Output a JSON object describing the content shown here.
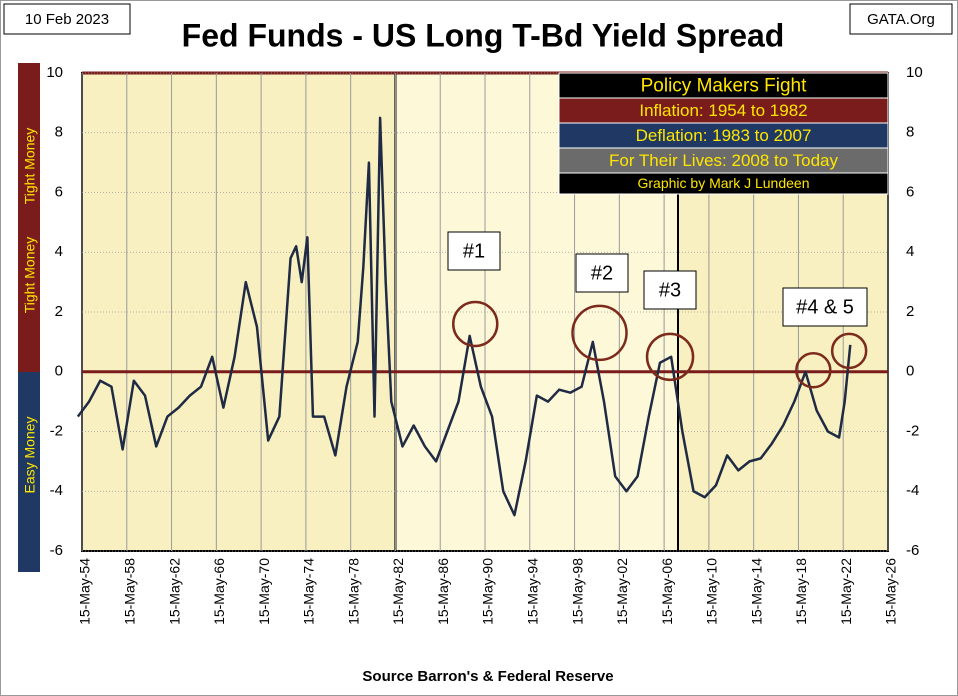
{
  "chart_data": {
    "type": "line",
    "title": "Fed Funds - US Long T-Bd Yield Spread",
    "date_stamp": "10 Feb 2023",
    "site": "GATA.Org",
    "source": "Source Barron's & Federal Reserve",
    "side_labels": {
      "tight": "Tight Money",
      "easy": "Easy Money"
    },
    "legend_box": [
      "Policy Makers Fight",
      "Inflation: 1954 to 1982",
      "Deflation: 1983 to 2007",
      "For Their Lives: 2008 to Today",
      "Graphic by Mark J Lundeen"
    ],
    "annotations": [
      "#1",
      "#2",
      "#3",
      "#4 & 5"
    ],
    "x": [
      1954,
      1955,
      1956,
      1957,
      1958,
      1959,
      1960,
      1961,
      1962,
      1963,
      1964,
      1965,
      1966,
      1967,
      1968,
      1969,
      1970,
      1971,
      1972,
      1973,
      1973.5,
      1974,
      1974.5,
      1975,
      1976,
      1977,
      1978,
      1979,
      1979.5,
      1980,
      1980.5,
      1981,
      1981.5,
      1982,
      1983,
      1984,
      1985,
      1986,
      1987,
      1988,
      1989,
      1990,
      1991,
      1992,
      1993,
      1994,
      1995,
      1996,
      1997,
      1998,
      1999,
      2000,
      2001,
      2002,
      2003,
      2004,
      2005,
      2006,
      2007,
      2008,
      2009,
      2010,
      2011,
      2012,
      2013,
      2014,
      2015,
      2016,
      2017,
      2018,
      2019,
      2020,
      2021,
      2022,
      2022.5,
      2023
    ],
    "series": [
      {
        "name": "Spread",
        "color": "#1f2a44",
        "values": [
          -1.5,
          -1,
          -0.3,
          -0.5,
          -2.6,
          -0.3,
          -0.8,
          -2.5,
          -1.5,
          -1.2,
          -0.8,
          -0.5,
          0.5,
          -1.2,
          0.5,
          3.0,
          1.5,
          -2.3,
          -1.5,
          3.8,
          4.2,
          3.0,
          4.5,
          -1.5,
          -1.5,
          -2.8,
          -0.5,
          1.0,
          3.5,
          7.0,
          -1.5,
          8.5,
          3.0,
          -1.0,
          -2.5,
          -1.8,
          -2.5,
          -3.0,
          -2.0,
          -1.0,
          1.2,
          -0.5,
          -1.5,
          -4.0,
          -4.8,
          -3.0,
          -0.8,
          -1.0,
          -0.6,
          -0.7,
          -0.5,
          1.0,
          -1.0,
          -3.5,
          -4.0,
          -3.5,
          -1.5,
          0.3,
          0.5,
          -2.0,
          -4.0,
          -4.2,
          -3.8,
          -2.8,
          -3.3,
          -3.0,
          -2.9,
          -2.4,
          -1.8,
          -1.0,
          0.0,
          -1.3,
          -2.0,
          -2.2,
          -1.0,
          0.9
        ]
      }
    ],
    "xlim": [
      1954.37,
      2026.37
    ],
    "xticks": [
      {
        "value": 1954.37,
        "label": "15-May-54"
      },
      {
        "value": 1958.37,
        "label": "15-May-58"
      },
      {
        "value": 1962.37,
        "label": "15-May-62"
      },
      {
        "value": 1966.37,
        "label": "15-May-66"
      },
      {
        "value": 1970.37,
        "label": "15-May-70"
      },
      {
        "value": 1974.37,
        "label": "15-May-74"
      },
      {
        "value": 1978.37,
        "label": "15-May-78"
      },
      {
        "value": 1982.37,
        "label": "15-May-82"
      },
      {
        "value": 1986.37,
        "label": "15-May-86"
      },
      {
        "value": 1990.37,
        "label": "15-May-90"
      },
      {
        "value": 1994.37,
        "label": "15-May-94"
      },
      {
        "value": 1998.37,
        "label": "15-May-98"
      },
      {
        "value": 2002.37,
        "label": "15-May-02"
      },
      {
        "value": 2006.37,
        "label": "15-May-06"
      },
      {
        "value": 2010.37,
        "label": "15-May-10"
      },
      {
        "value": 2014.37,
        "label": "15-May-14"
      },
      {
        "value": 2018.37,
        "label": "15-May-18"
      },
      {
        "value": 2022.37,
        "label": "15-May-22"
      },
      {
        "value": 2026.37,
        "label": "15-May-26"
      }
    ],
    "ylim": [
      -6,
      10
    ],
    "yticks": [
      -6,
      -4,
      -2,
      0,
      2,
      4,
      6,
      8,
      10
    ],
    "grid": true
  }
}
